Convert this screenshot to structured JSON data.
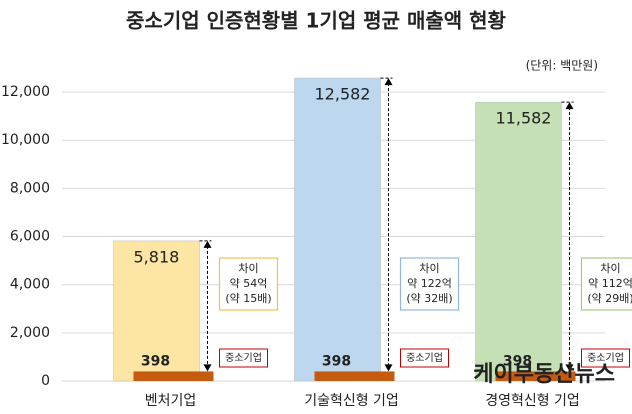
{
  "chart_data": {
    "type": "bar",
    "title": "중소기업 인증현황별 1기업 평균 매출액 현황",
    "unit_note": "(단위: 백만원)",
    "categories": [
      "벤처기업",
      "기술혁신형 기업",
      "경영혁신형 기업"
    ],
    "series": [
      {
        "colors": [
          "#fde6a3",
          "#bdd7ee",
          "#c5e0b4"
        ],
        "values": [
          5818,
          12582,
          11582
        ],
        "value_labels": [
          "5,818",
          "12,582",
          "11,582"
        ]
      },
      {
        "name": "중소기업",
        "color": "#c55a11",
        "label_color": "#e0302a",
        "values": [
          398,
          398,
          398
        ]
      }
    ],
    "differences": [
      {
        "lines": [
          "차이",
          "약 54억",
          "(약 15배)"
        ],
        "border_color": "#f2c44c"
      },
      {
        "lines": [
          "차이",
          "약 122억",
          "(약 32배)"
        ],
        "border_color": "#8fb8e0"
      },
      {
        "lines": [
          "차이",
          "약 112억",
          "(약 29배)"
        ],
        "border_color": "#a2cc86"
      }
    ],
    "ylim": [
      0,
      13000
    ],
    "yticks": [
      0,
      {
        "value": 2000,
        "label": "2,000"
      },
      {
        "value": 4000,
        "label": "4,000"
      },
      {
        "value": 6000,
        "label": "6,000"
      },
      {
        "value": 8000,
        "label": "8,000"
      },
      {
        "value": 10000,
        "label": "10,000"
      },
      {
        "value": 12000,
        "label": "12,000"
      }
    ],
    "grid": true,
    "watermark": "케이부동산뉴스"
  }
}
